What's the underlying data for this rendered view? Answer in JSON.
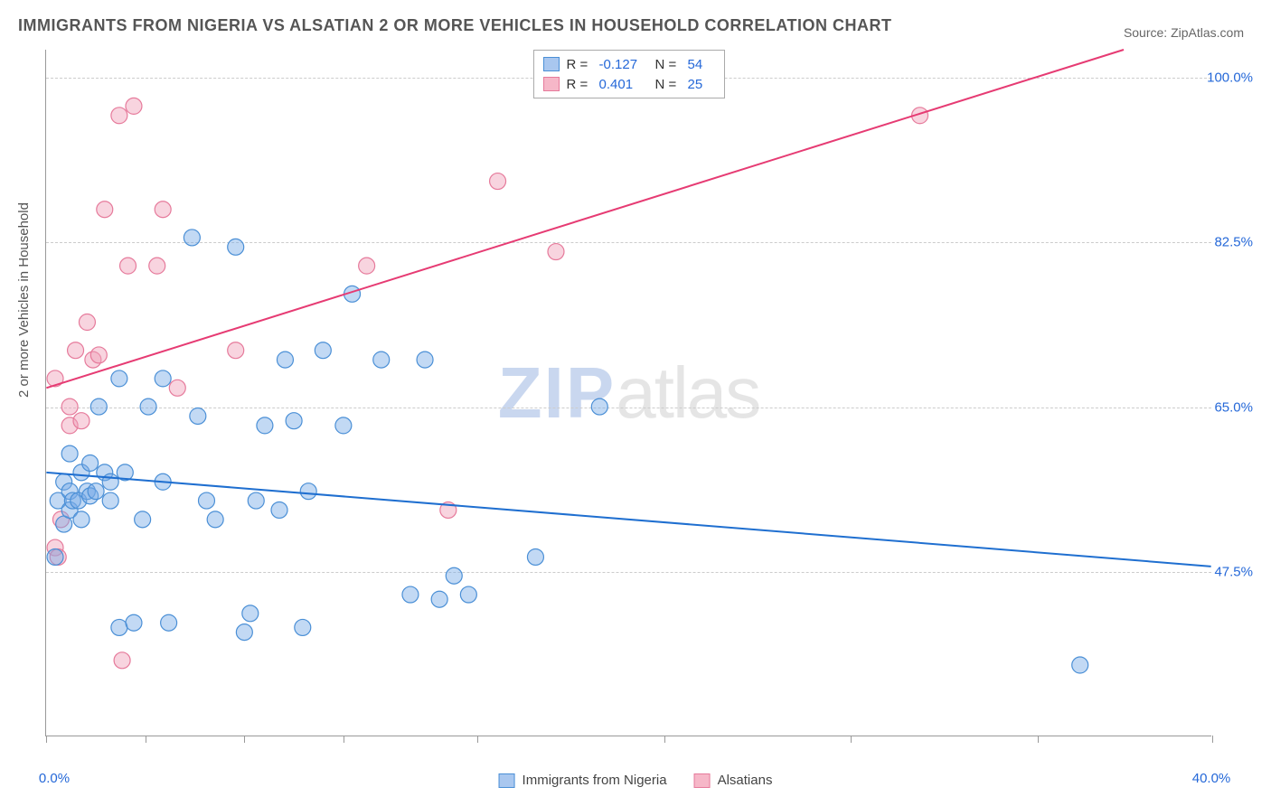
{
  "title": "IMMIGRANTS FROM NIGERIA VS ALSATIAN 2 OR MORE VEHICLES IN HOUSEHOLD CORRELATION CHART",
  "source_label": "Source:",
  "source_value": "ZipAtlas.com",
  "watermark_a": "ZIP",
  "watermark_b": "atlas",
  "y_axis_label": "2 or more Vehicles in Household",
  "x_axis": {
    "min": 0,
    "max": 40,
    "label_left": "0.0%",
    "label_right": "40.0%",
    "tick_positions_pct": [
      0,
      8.5,
      17,
      25.5,
      37,
      53,
      69,
      85,
      100
    ]
  },
  "y_axis": {
    "min": 30,
    "max": 103,
    "gridlines": [
      47.5,
      65.0,
      82.5,
      100.0
    ],
    "labels": [
      "47.5%",
      "65.0%",
      "82.5%",
      "100.0%"
    ]
  },
  "legend_top": {
    "rows": [
      {
        "swatch_fill": "#a9c7ef",
        "swatch_border": "#4a8fd6",
        "r": "-0.127",
        "n": "54"
      },
      {
        "swatch_fill": "#f6b7c8",
        "swatch_border": "#e67a9b",
        "r": "0.401",
        "n": "25"
      }
    ],
    "r_label": "R =",
    "n_label": "N ="
  },
  "legend_bottom": {
    "items": [
      {
        "swatch_fill": "#a9c7ef",
        "swatch_border": "#4a8fd6",
        "label": "Immigrants from Nigeria"
      },
      {
        "swatch_fill": "#f6b7c8",
        "swatch_border": "#e67a9b",
        "label": "Alsatians"
      }
    ]
  },
  "series": {
    "blue": {
      "color_fill": "rgba(120,170,230,0.45)",
      "color_stroke": "#4a8fd6",
      "marker_radius": 9,
      "trend_color": "#1f6fd0",
      "trend_width": 2,
      "trend_start": {
        "x": 0,
        "y": 58
      },
      "trend_end": {
        "x": 40,
        "y": 48
      },
      "points": [
        {
          "x": 0.3,
          "y": 49
        },
        {
          "x": 0.4,
          "y": 55
        },
        {
          "x": 0.6,
          "y": 57
        },
        {
          "x": 0.6,
          "y": 52.5
        },
        {
          "x": 0.8,
          "y": 60
        },
        {
          "x": 0.8,
          "y": 54
        },
        {
          "x": 0.8,
          "y": 56
        },
        {
          "x": 0.9,
          "y": 55
        },
        {
          "x": 1.1,
          "y": 55
        },
        {
          "x": 1.2,
          "y": 53
        },
        {
          "x": 1.2,
          "y": 58
        },
        {
          "x": 1.4,
          "y": 56
        },
        {
          "x": 1.5,
          "y": 55.5
        },
        {
          "x": 1.5,
          "y": 59
        },
        {
          "x": 1.7,
          "y": 56
        },
        {
          "x": 1.8,
          "y": 65
        },
        {
          "x": 2.0,
          "y": 58
        },
        {
          "x": 2.2,
          "y": 55
        },
        {
          "x": 2.2,
          "y": 57
        },
        {
          "x": 2.5,
          "y": 68
        },
        {
          "x": 2.7,
          "y": 58
        },
        {
          "x": 2.5,
          "y": 41.5
        },
        {
          "x": 3.0,
          "y": 42
        },
        {
          "x": 3.3,
          "y": 53
        },
        {
          "x": 3.5,
          "y": 65
        },
        {
          "x": 4.0,
          "y": 68
        },
        {
          "x": 4.0,
          "y": 57
        },
        {
          "x": 4.2,
          "y": 42
        },
        {
          "x": 5.0,
          "y": 83
        },
        {
          "x": 5.5,
          "y": 55
        },
        {
          "x": 5.2,
          "y": 64
        },
        {
          "x": 5.8,
          "y": 53
        },
        {
          "x": 6.5,
          "y": 82
        },
        {
          "x": 6.8,
          "y": 41
        },
        {
          "x": 7.0,
          "y": 43
        },
        {
          "x": 7.2,
          "y": 55
        },
        {
          "x": 7.5,
          "y": 63
        },
        {
          "x": 8.0,
          "y": 54
        },
        {
          "x": 8.2,
          "y": 70
        },
        {
          "x": 8.8,
          "y": 41.5
        },
        {
          "x": 8.5,
          "y": 63.5
        },
        {
          "x": 9.0,
          "y": 56
        },
        {
          "x": 9.5,
          "y": 71
        },
        {
          "x": 10.2,
          "y": 63
        },
        {
          "x": 10.5,
          "y": 77
        },
        {
          "x": 11.5,
          "y": 70
        },
        {
          "x": 12.5,
          "y": 45
        },
        {
          "x": 13.0,
          "y": 70
        },
        {
          "x": 13.5,
          "y": 44.5
        },
        {
          "x": 14.0,
          "y": 47
        },
        {
          "x": 14.5,
          "y": 45
        },
        {
          "x": 16.8,
          "y": 49
        },
        {
          "x": 19.0,
          "y": 65
        },
        {
          "x": 35.5,
          "y": 37.5
        }
      ]
    },
    "pink": {
      "color_fill": "rgba(240,160,185,0.45)",
      "color_stroke": "#e67a9b",
      "marker_radius": 9,
      "trend_color": "#e63b73",
      "trend_width": 2,
      "trend_start": {
        "x": 0,
        "y": 67
      },
      "trend_end": {
        "x": 37,
        "y": 103
      },
      "points": [
        {
          "x": 0.3,
          "y": 68
        },
        {
          "x": 0.3,
          "y": 50
        },
        {
          "x": 0.4,
          "y": 49
        },
        {
          "x": 0.5,
          "y": 53
        },
        {
          "x": 0.8,
          "y": 65
        },
        {
          "x": 0.8,
          "y": 63
        },
        {
          "x": 1.0,
          "y": 71
        },
        {
          "x": 1.2,
          "y": 63.5
        },
        {
          "x": 1.4,
          "y": 74
        },
        {
          "x": 1.6,
          "y": 70
        },
        {
          "x": 1.8,
          "y": 70.5
        },
        {
          "x": 2.0,
          "y": 86
        },
        {
          "x": 2.5,
          "y": 96
        },
        {
          "x": 2.6,
          "y": 38
        },
        {
          "x": 2.8,
          "y": 80
        },
        {
          "x": 3.0,
          "y": 97
        },
        {
          "x": 3.8,
          "y": 80
        },
        {
          "x": 4.0,
          "y": 86
        },
        {
          "x": 4.5,
          "y": 67
        },
        {
          "x": 6.5,
          "y": 71
        },
        {
          "x": 11.0,
          "y": 80
        },
        {
          "x": 13.8,
          "y": 54
        },
        {
          "x": 15.5,
          "y": 89
        },
        {
          "x": 17.5,
          "y": 81.5
        },
        {
          "x": 30.0,
          "y": 96
        }
      ]
    }
  },
  "colors": {
    "title": "#555555",
    "axis_text": "#555555",
    "tick_value": "#2568d8",
    "grid": "#cccccc",
    "border": "#999999",
    "bg": "#ffffff"
  }
}
